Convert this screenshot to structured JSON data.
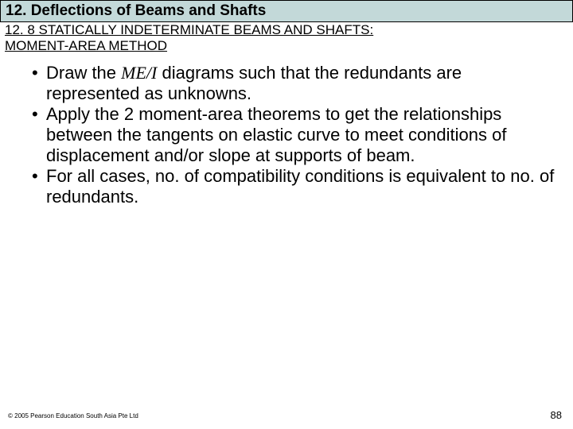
{
  "header": {
    "chapter_title": "12. Deflections of Beams and Shafts",
    "section_title_line1": "12. 8 STATICALLY INDETERMINATE BEAMS AND SHAFTS:",
    "section_title_line2": "MOMENT-AREA METHOD"
  },
  "bullets": [
    {
      "pre": "Draw the ",
      "italic": "ME/I",
      "post": " diagrams such that the redundants are represented as unknowns."
    },
    {
      "pre": "",
      "italic": "",
      "post": "Apply the 2 moment-area theorems to get the relationships between the tangents on elastic curve to meet conditions of displacement and/or slope at supports of beam."
    },
    {
      "pre": "",
      "italic": "",
      "post": "For all cases, no. of compatibility conditions is equivalent to no. of redundants."
    }
  ],
  "footer": {
    "copyright": "© 2005 Pearson Education South Asia Pte Ltd",
    "page_number": "88"
  },
  "colors": {
    "title_bg": "#c3d9d9",
    "text": "#000000",
    "page_bg": "#ffffff"
  }
}
